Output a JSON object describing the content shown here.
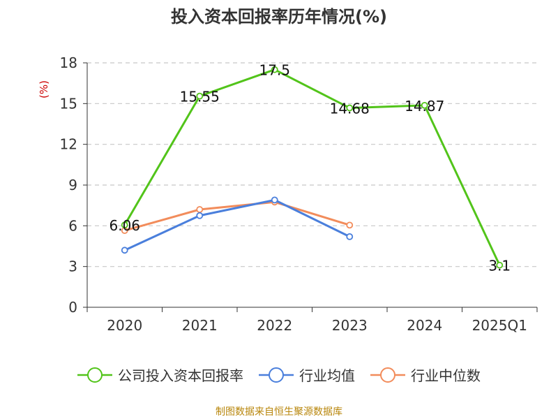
{
  "chart_data": {
    "type": "line",
    "title": "投入资本回报率历年情况(%)",
    "ylabel": "(%)",
    "xlabel": "",
    "categories": [
      "2020",
      "2021",
      "2022",
      "2023",
      "2024",
      "2025Q1"
    ],
    "yticks": [
      0,
      3,
      6,
      9,
      12,
      15,
      18
    ],
    "ylim": [
      0,
      18
    ],
    "grid": true,
    "legend_position": "bottom",
    "series": [
      {
        "name": "公司投入资本回报率",
        "color": "#52c41a",
        "values": [
          6.06,
          15.55,
          17.5,
          14.68,
          14.87,
          3.1
        ],
        "labels": [
          "6.06",
          "15.55",
          "17.5",
          "14.68",
          "14.87",
          "3.1"
        ]
      },
      {
        "name": "行业均值",
        "color": "#4a7fdc",
        "values": [
          4.2,
          6.75,
          7.9,
          5.2,
          null,
          null
        ]
      },
      {
        "name": "行业中位数",
        "color": "#f28c5b",
        "values": [
          5.65,
          7.2,
          7.75,
          6.05,
          null,
          null
        ]
      }
    ]
  },
  "footer": {
    "source": "制图数据来自恒生聚源数据库"
  }
}
